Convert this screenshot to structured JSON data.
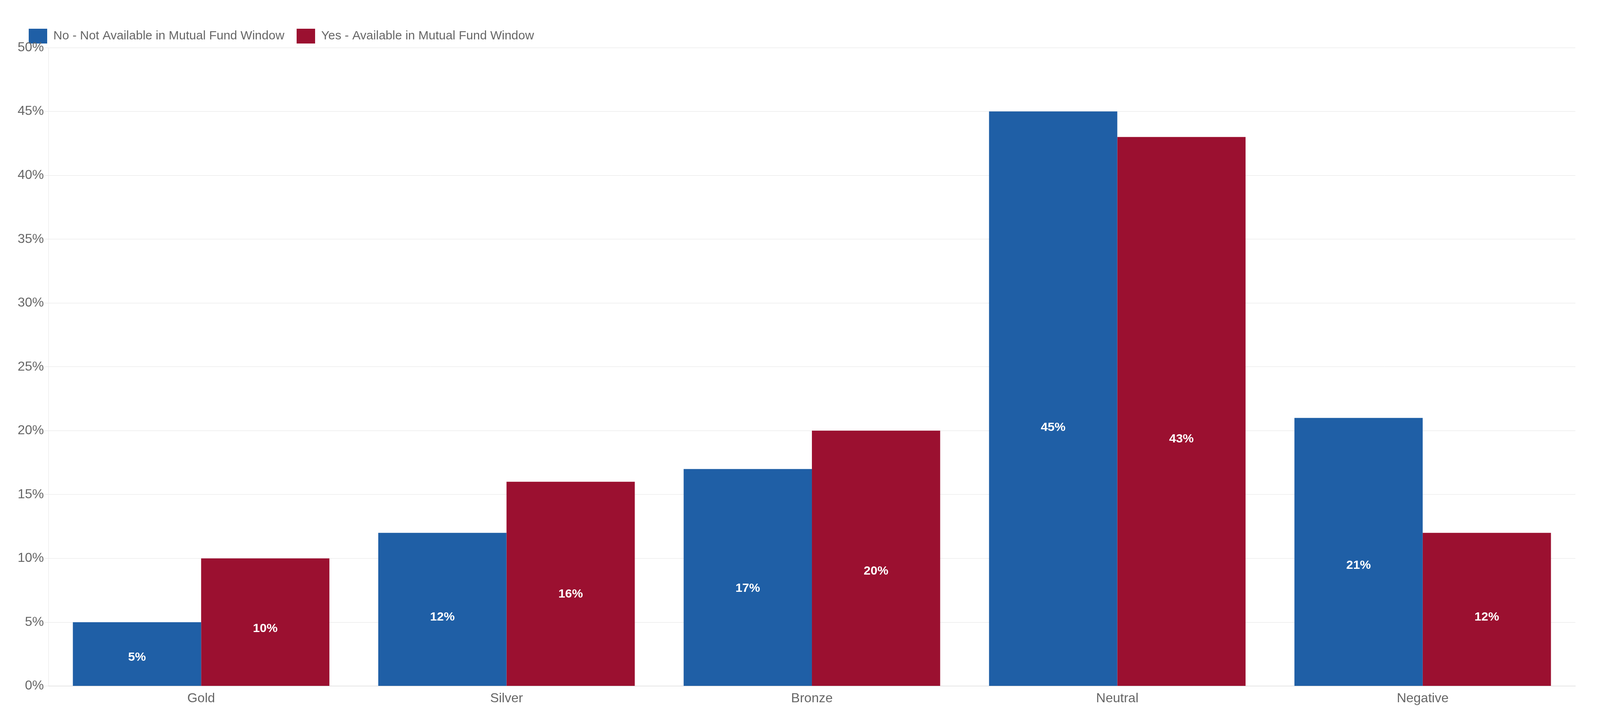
{
  "chart_data": {
    "type": "bar",
    "categories": [
      "Gold",
      "Silver",
      "Bronze",
      "Neutral",
      "Negative"
    ],
    "series": [
      {
        "name": "No - Not Available in Mutual Fund Window",
        "color": "#1F5FA6",
        "values": [
          5,
          12,
          17,
          45,
          21
        ],
        "value_labels": [
          "5%",
          "12%",
          "17%",
          "45%",
          "21%"
        ]
      },
      {
        "name": "Yes - Available in Mutual Fund Window",
        "color": "#9B1030",
        "values": [
          10,
          16,
          20,
          43,
          12
        ],
        "value_labels": [
          "10%",
          "16%",
          "20%",
          "43%",
          "12%"
        ]
      }
    ],
    "ylim": [
      0,
      50
    ],
    "yticks": [
      {
        "value": 0,
        "label": "0%"
      },
      {
        "value": 5,
        "label": "5%"
      },
      {
        "value": 10,
        "label": "10%"
      },
      {
        "value": 15,
        "label": "15%"
      },
      {
        "value": 20,
        "label": "20%"
      },
      {
        "value": 25,
        "label": "25%"
      },
      {
        "value": 30,
        "label": "30%"
      },
      {
        "value": 35,
        "label": "35%"
      },
      {
        "value": 40,
        "label": "40%"
      },
      {
        "value": 45,
        "label": "45%"
      },
      {
        "value": 50,
        "label": "50%"
      }
    ],
    "grid": true,
    "legend": "upper left",
    "data_labels": true
  }
}
